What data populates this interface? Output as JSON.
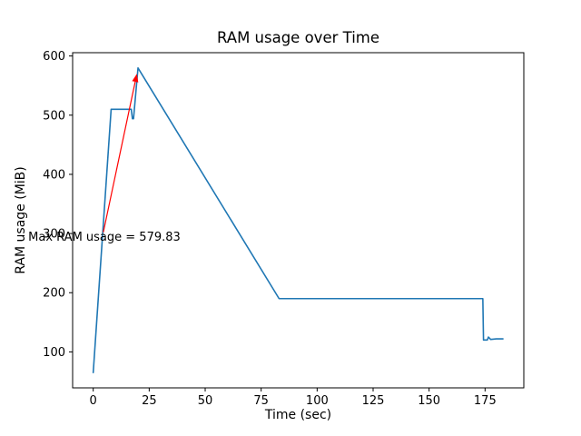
{
  "chart_data": {
    "type": "line",
    "title": "RAM usage over Time",
    "xlabel": "Time (sec)",
    "ylabel": "RAM usage (MiB)",
    "xlim": [
      -9.2,
      192.3
    ],
    "ylim": [
      39.2,
      605.6
    ],
    "xticks": [
      0,
      25,
      50,
      75,
      100,
      125,
      150,
      175
    ],
    "yticks": [
      100,
      200,
      300,
      400,
      500,
      600
    ],
    "grid": false,
    "legend_position": "none",
    "background_color": "#ffffff",
    "series": [
      {
        "name": "RAM usage",
        "color": "#1f77b4",
        "x": [
          0,
          8,
          17,
          17.5,
          18,
          20,
          83,
          174,
          174.3,
          176,
          176.5,
          177.5,
          180,
          183
        ],
        "y": [
          65,
          510,
          510,
          494,
          494,
          579.83,
          190,
          190,
          120,
          120,
          125,
          121,
          122,
          122
        ]
      }
    ],
    "annotation": {
      "text": "Max RAM usage = 579.83",
      "color": "#ff0000",
      "text_x": -29,
      "text_y": 288,
      "arrow": {
        "from_x": 4.5,
        "from_y": 302,
        "to_x": 19.5,
        "to_y": 570
      }
    }
  }
}
